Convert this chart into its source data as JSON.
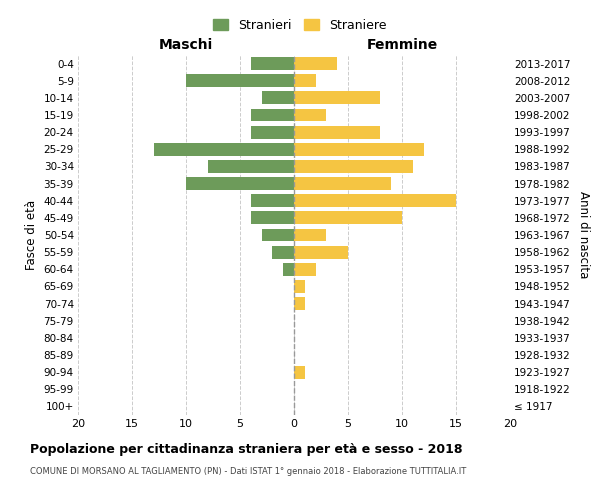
{
  "age_groups": [
    "100+",
    "95-99",
    "90-94",
    "85-89",
    "80-84",
    "75-79",
    "70-74",
    "65-69",
    "60-64",
    "55-59",
    "50-54",
    "45-49",
    "40-44",
    "35-39",
    "30-34",
    "25-29",
    "20-24",
    "15-19",
    "10-14",
    "5-9",
    "0-4"
  ],
  "birth_years": [
    "≤ 1917",
    "1918-1922",
    "1923-1927",
    "1928-1932",
    "1933-1937",
    "1938-1942",
    "1943-1947",
    "1948-1952",
    "1953-1957",
    "1958-1962",
    "1963-1967",
    "1968-1972",
    "1973-1977",
    "1978-1982",
    "1983-1987",
    "1988-1992",
    "1993-1997",
    "1998-2002",
    "2003-2007",
    "2008-2012",
    "2013-2017"
  ],
  "maschi": [
    0,
    0,
    0,
    0,
    0,
    0,
    0,
    0,
    1,
    2,
    3,
    4,
    4,
    10,
    8,
    13,
    4,
    4,
    3,
    10,
    4
  ],
  "femmine": [
    0,
    0,
    1,
    0,
    0,
    0,
    1,
    1,
    2,
    5,
    3,
    10,
    15,
    9,
    11,
    12,
    8,
    3,
    8,
    2,
    4
  ],
  "color_maschi": "#6d9b5a",
  "color_femmine": "#f5c542",
  "title": "Popolazione per cittadinanza straniera per età e sesso - 2018",
  "subtitle": "COMUNE DI MORSANO AL TAGLIAMENTO (PN) - Dati ISTAT 1° gennaio 2018 - Elaborazione TUTTITALIA.IT",
  "xlabel_left": "Maschi",
  "xlabel_right": "Femmine",
  "ylabel_left": "Fasce di età",
  "ylabel_right": "Anni di nascita",
  "legend_stranieri": "Stranieri",
  "legend_straniere": "Straniere",
  "xlim": 20,
  "background_color": "#ffffff",
  "grid_color": "#cccccc"
}
